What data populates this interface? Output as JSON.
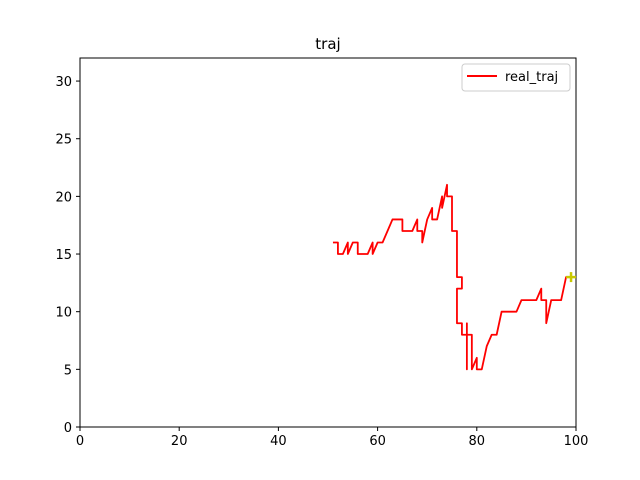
{
  "chart_data": {
    "type": "line",
    "title": "traj",
    "xlabel": "",
    "ylabel": "",
    "xlim": [
      0,
      100
    ],
    "ylim": [
      0,
      32
    ],
    "xticks": [
      0,
      20,
      40,
      60,
      80,
      100
    ],
    "yticks": [
      0,
      5,
      10,
      15,
      20,
      25,
      30
    ],
    "grid": false,
    "legend": "top-right",
    "series": [
      {
        "name": "real_traj",
        "color": "#ff0000",
        "points": [
          [
            51,
            16
          ],
          [
            52,
            16
          ],
          [
            52,
            15
          ],
          [
            53,
            15
          ],
          [
            54,
            16
          ],
          [
            54,
            15
          ],
          [
            55,
            16
          ],
          [
            56,
            16
          ],
          [
            56,
            15
          ],
          [
            57,
            15
          ],
          [
            58,
            15
          ],
          [
            59,
            16
          ],
          [
            59,
            15
          ],
          [
            60,
            16
          ],
          [
            61,
            16
          ],
          [
            62,
            17
          ],
          [
            63,
            18
          ],
          [
            64,
            18
          ],
          [
            65,
            18
          ],
          [
            65,
            17
          ],
          [
            66,
            17
          ],
          [
            67,
            17
          ],
          [
            68,
            18
          ],
          [
            68,
            17
          ],
          [
            69,
            17
          ],
          [
            69,
            16
          ],
          [
            70,
            18
          ],
          [
            71,
            19
          ],
          [
            71,
            18
          ],
          [
            72,
            18
          ],
          [
            73,
            20
          ],
          [
            73,
            19
          ],
          [
            74,
            21
          ],
          [
            74,
            20
          ],
          [
            75,
            20
          ],
          [
            75,
            17
          ],
          [
            76,
            17
          ],
          [
            76,
            13
          ],
          [
            77,
            13
          ],
          [
            77,
            12
          ],
          [
            76,
            12
          ],
          [
            76,
            9
          ],
          [
            77,
            9
          ],
          [
            77,
            8
          ],
          [
            78,
            8
          ],
          [
            78,
            9
          ],
          [
            78,
            5
          ],
          [
            78,
            8
          ],
          [
            79,
            8
          ],
          [
            79,
            7
          ],
          [
            79,
            5
          ],
          [
            80,
            6
          ],
          [
            80,
            5
          ],
          [
            81,
            5
          ],
          [
            82,
            7
          ],
          [
            83,
            8
          ],
          [
            84,
            8
          ],
          [
            85,
            10
          ],
          [
            86,
            10
          ],
          [
            87,
            10
          ],
          [
            88,
            10
          ],
          [
            89,
            11
          ],
          [
            90,
            11
          ],
          [
            91,
            11
          ],
          [
            92,
            11
          ],
          [
            93,
            12
          ],
          [
            93,
            11
          ],
          [
            94,
            11
          ],
          [
            94,
            9
          ],
          [
            95,
            11
          ],
          [
            96,
            11
          ],
          [
            97,
            11
          ],
          [
            98,
            13
          ],
          [
            99,
            13
          ]
        ]
      }
    ],
    "endpoint": {
      "x": 99,
      "y": 13,
      "color": "#c8c800",
      "marker": "plus"
    }
  }
}
